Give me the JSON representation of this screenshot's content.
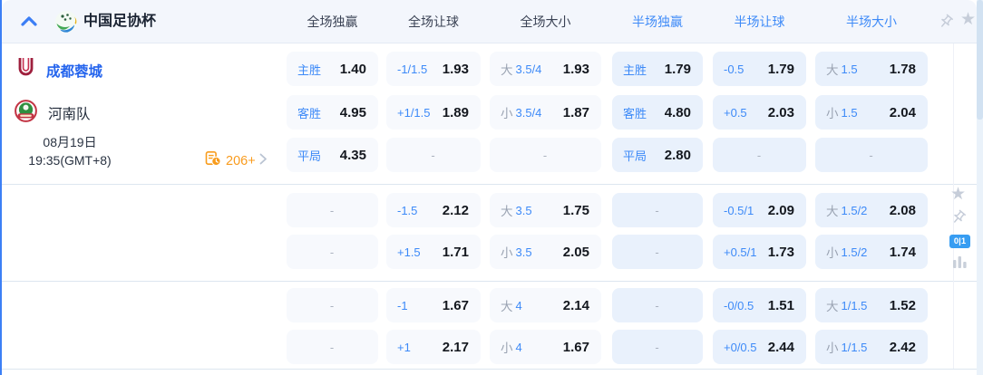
{
  "colors": {
    "accent_blue": "#3d8af8",
    "team_name_blue": "#2464ed",
    "odds_value_dark": "#14181f",
    "muted_gray": "#9aa3b2",
    "full_cell_bg": "#f7f9fd",
    "half_cell_bg": "#e9f1fc",
    "header_bg": "#f3f6fc",
    "left_border_blue": "#3c7ff5",
    "orange": "#f99b1d",
    "icon_gray": "#c6cdd9"
  },
  "header": {
    "collapse_icon": "chevron-up-icon",
    "league_icon": "league-logo-icon",
    "league_title": "中国足协杯",
    "columns": [
      {
        "label": "全场独赢",
        "scope": "full"
      },
      {
        "label": "全场让球",
        "scope": "full"
      },
      {
        "label": "全场大小",
        "scope": "full"
      },
      {
        "label": "半场独赢",
        "scope": "half"
      },
      {
        "label": "半场让球",
        "scope": "half"
      },
      {
        "label": "半场大小",
        "scope": "half"
      }
    ],
    "pin_icon": "pin-icon",
    "star_icon": "star-icon"
  },
  "match": {
    "home_team": "成都蓉城",
    "home_crest": "chengdu-rongcheng-crest",
    "away_team": "河南队",
    "away_crest": "henan-crest",
    "date": "08月19日",
    "time": "19:35(GMT+8)",
    "more_markets": "206+",
    "more_markets_icon": "odds-history-icon",
    "more_markets_chevron": "chevron-right-icon"
  },
  "odds_sections": [
    [
      [
        {
          "label": "主胜",
          "value": "1.40"
        },
        {
          "hcp": "-1/1.5",
          "value": "1.93"
        },
        {
          "prefix": "大",
          "hcp": "3.5/4",
          "value": "1.93"
        },
        {
          "label": "主胜",
          "value": "1.79"
        },
        {
          "hcp": "-0.5",
          "value": "1.79"
        },
        {
          "prefix": "大",
          "hcp": "1.5",
          "value": "1.78"
        }
      ],
      [
        {
          "label": "客胜",
          "value": "4.95"
        },
        {
          "hcp": "+1/1.5",
          "value": "1.89"
        },
        {
          "prefix": "小",
          "hcp": "3.5/4",
          "value": "1.87"
        },
        {
          "label": "客胜",
          "value": "4.80"
        },
        {
          "hcp": "+0.5",
          "value": "2.03"
        },
        {
          "prefix": "小",
          "hcp": "1.5",
          "value": "2.04"
        }
      ],
      [
        {
          "label": "平局",
          "value": "4.35"
        },
        {
          "dash": "-"
        },
        {
          "dash": "-"
        },
        {
          "label": "平局",
          "value": "2.80"
        },
        {
          "dash": "-"
        },
        {
          "dash": "-"
        }
      ]
    ],
    [
      [
        {
          "dash": "-"
        },
        {
          "hcp": "-1.5",
          "value": "2.12"
        },
        {
          "prefix": "大",
          "hcp": "3.5",
          "value": "1.75"
        },
        {
          "dash": "-"
        },
        {
          "hcp": "-0.5/1",
          "value": "2.09"
        },
        {
          "prefix": "大",
          "hcp": "1.5/2",
          "value": "2.08"
        }
      ],
      [
        {
          "dash": "-"
        },
        {
          "hcp": "+1.5",
          "value": "1.71"
        },
        {
          "prefix": "小",
          "hcp": "3.5",
          "value": "2.05"
        },
        {
          "dash": "-"
        },
        {
          "hcp": "+0.5/1",
          "value": "1.73"
        },
        {
          "prefix": "小",
          "hcp": "1.5/2",
          "value": "1.74"
        }
      ]
    ],
    [
      [
        {
          "dash": "-"
        },
        {
          "hcp": "-1",
          "value": "1.67"
        },
        {
          "prefix": "大",
          "hcp": "4",
          "value": "2.14"
        },
        {
          "dash": "-"
        },
        {
          "hcp": "-0/0.5",
          "value": "1.51"
        },
        {
          "prefix": "大",
          "hcp": "1/1.5",
          "value": "1.52"
        }
      ],
      [
        {
          "dash": "-"
        },
        {
          "hcp": "+1",
          "value": "2.17"
        },
        {
          "prefix": "小",
          "hcp": "4",
          "value": "1.67"
        },
        {
          "dash": "-"
        },
        {
          "hcp": "+0/0.5",
          "value": "2.44"
        },
        {
          "prefix": "小",
          "hcp": "1/1.5",
          "value": "2.42"
        }
      ]
    ]
  ],
  "side_tools": {
    "star_icon": "star-icon",
    "pin_icon": "pin-icon",
    "badge": "0|1",
    "stats_icon": "bar-chart-icon"
  }
}
